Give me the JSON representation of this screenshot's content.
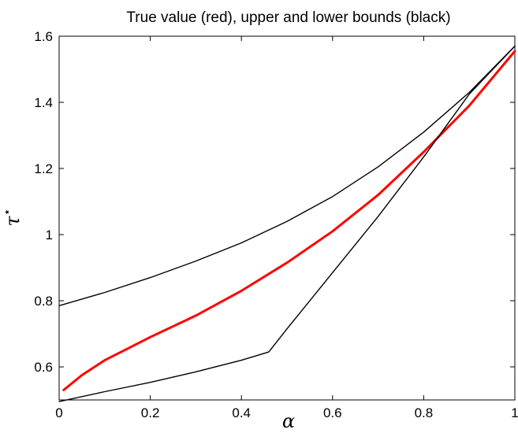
{
  "chart_data": {
    "type": "line",
    "title": "True value (red), upper and lower bounds (black)",
    "xlabel": "α",
    "ylabel": "τ",
    "ylabel_superscript": "⋆",
    "xlim": [
      0,
      1
    ],
    "ylim": [
      0.5,
      1.6
    ],
    "xticks": [
      0,
      0.2,
      0.4,
      0.6,
      0.8,
      1
    ],
    "xtick_labels": [
      "0",
      "0.2",
      "0.4",
      "0.6",
      "0.8",
      "1"
    ],
    "yticks": [
      0.6,
      0.8,
      1.0,
      1.2,
      1.4,
      1.6
    ],
    "ytick_labels": [
      "0.6",
      "0.8",
      "1",
      "1.2",
      "1.4",
      "1.6"
    ],
    "grid": false,
    "series": [
      {
        "color": "#000000",
        "stroke_width": 1.4,
        "x": [
          0,
          0.1,
          0.2,
          0.3,
          0.4,
          0.5,
          0.6,
          0.7,
          0.8,
          0.9,
          1.0
        ],
        "y": [
          0.785,
          0.825,
          0.87,
          0.92,
          0.975,
          1.04,
          1.115,
          1.205,
          1.31,
          1.43,
          1.57
        ]
      },
      {
        "color": "#ff0000",
        "stroke_width": 3,
        "x": [
          0.01,
          0.05,
          0.1,
          0.15,
          0.2,
          0.3,
          0.4,
          0.5,
          0.6,
          0.7,
          0.8,
          0.9,
          1.0
        ],
        "y": [
          0.53,
          0.575,
          0.62,
          0.655,
          0.69,
          0.755,
          0.83,
          0.915,
          1.01,
          1.12,
          1.25,
          1.39,
          1.555
        ]
      },
      {
        "color": "#000000",
        "stroke_width": 1.4,
        "x": [
          0,
          0.1,
          0.2,
          0.3,
          0.4,
          0.46,
          0.5,
          0.6,
          0.7,
          0.8,
          0.9,
          1.0
        ],
        "y": [
          0.495,
          0.525,
          0.553,
          0.585,
          0.62,
          0.645,
          0.715,
          0.885,
          1.055,
          1.235,
          1.425,
          1.57
        ]
      }
    ]
  }
}
